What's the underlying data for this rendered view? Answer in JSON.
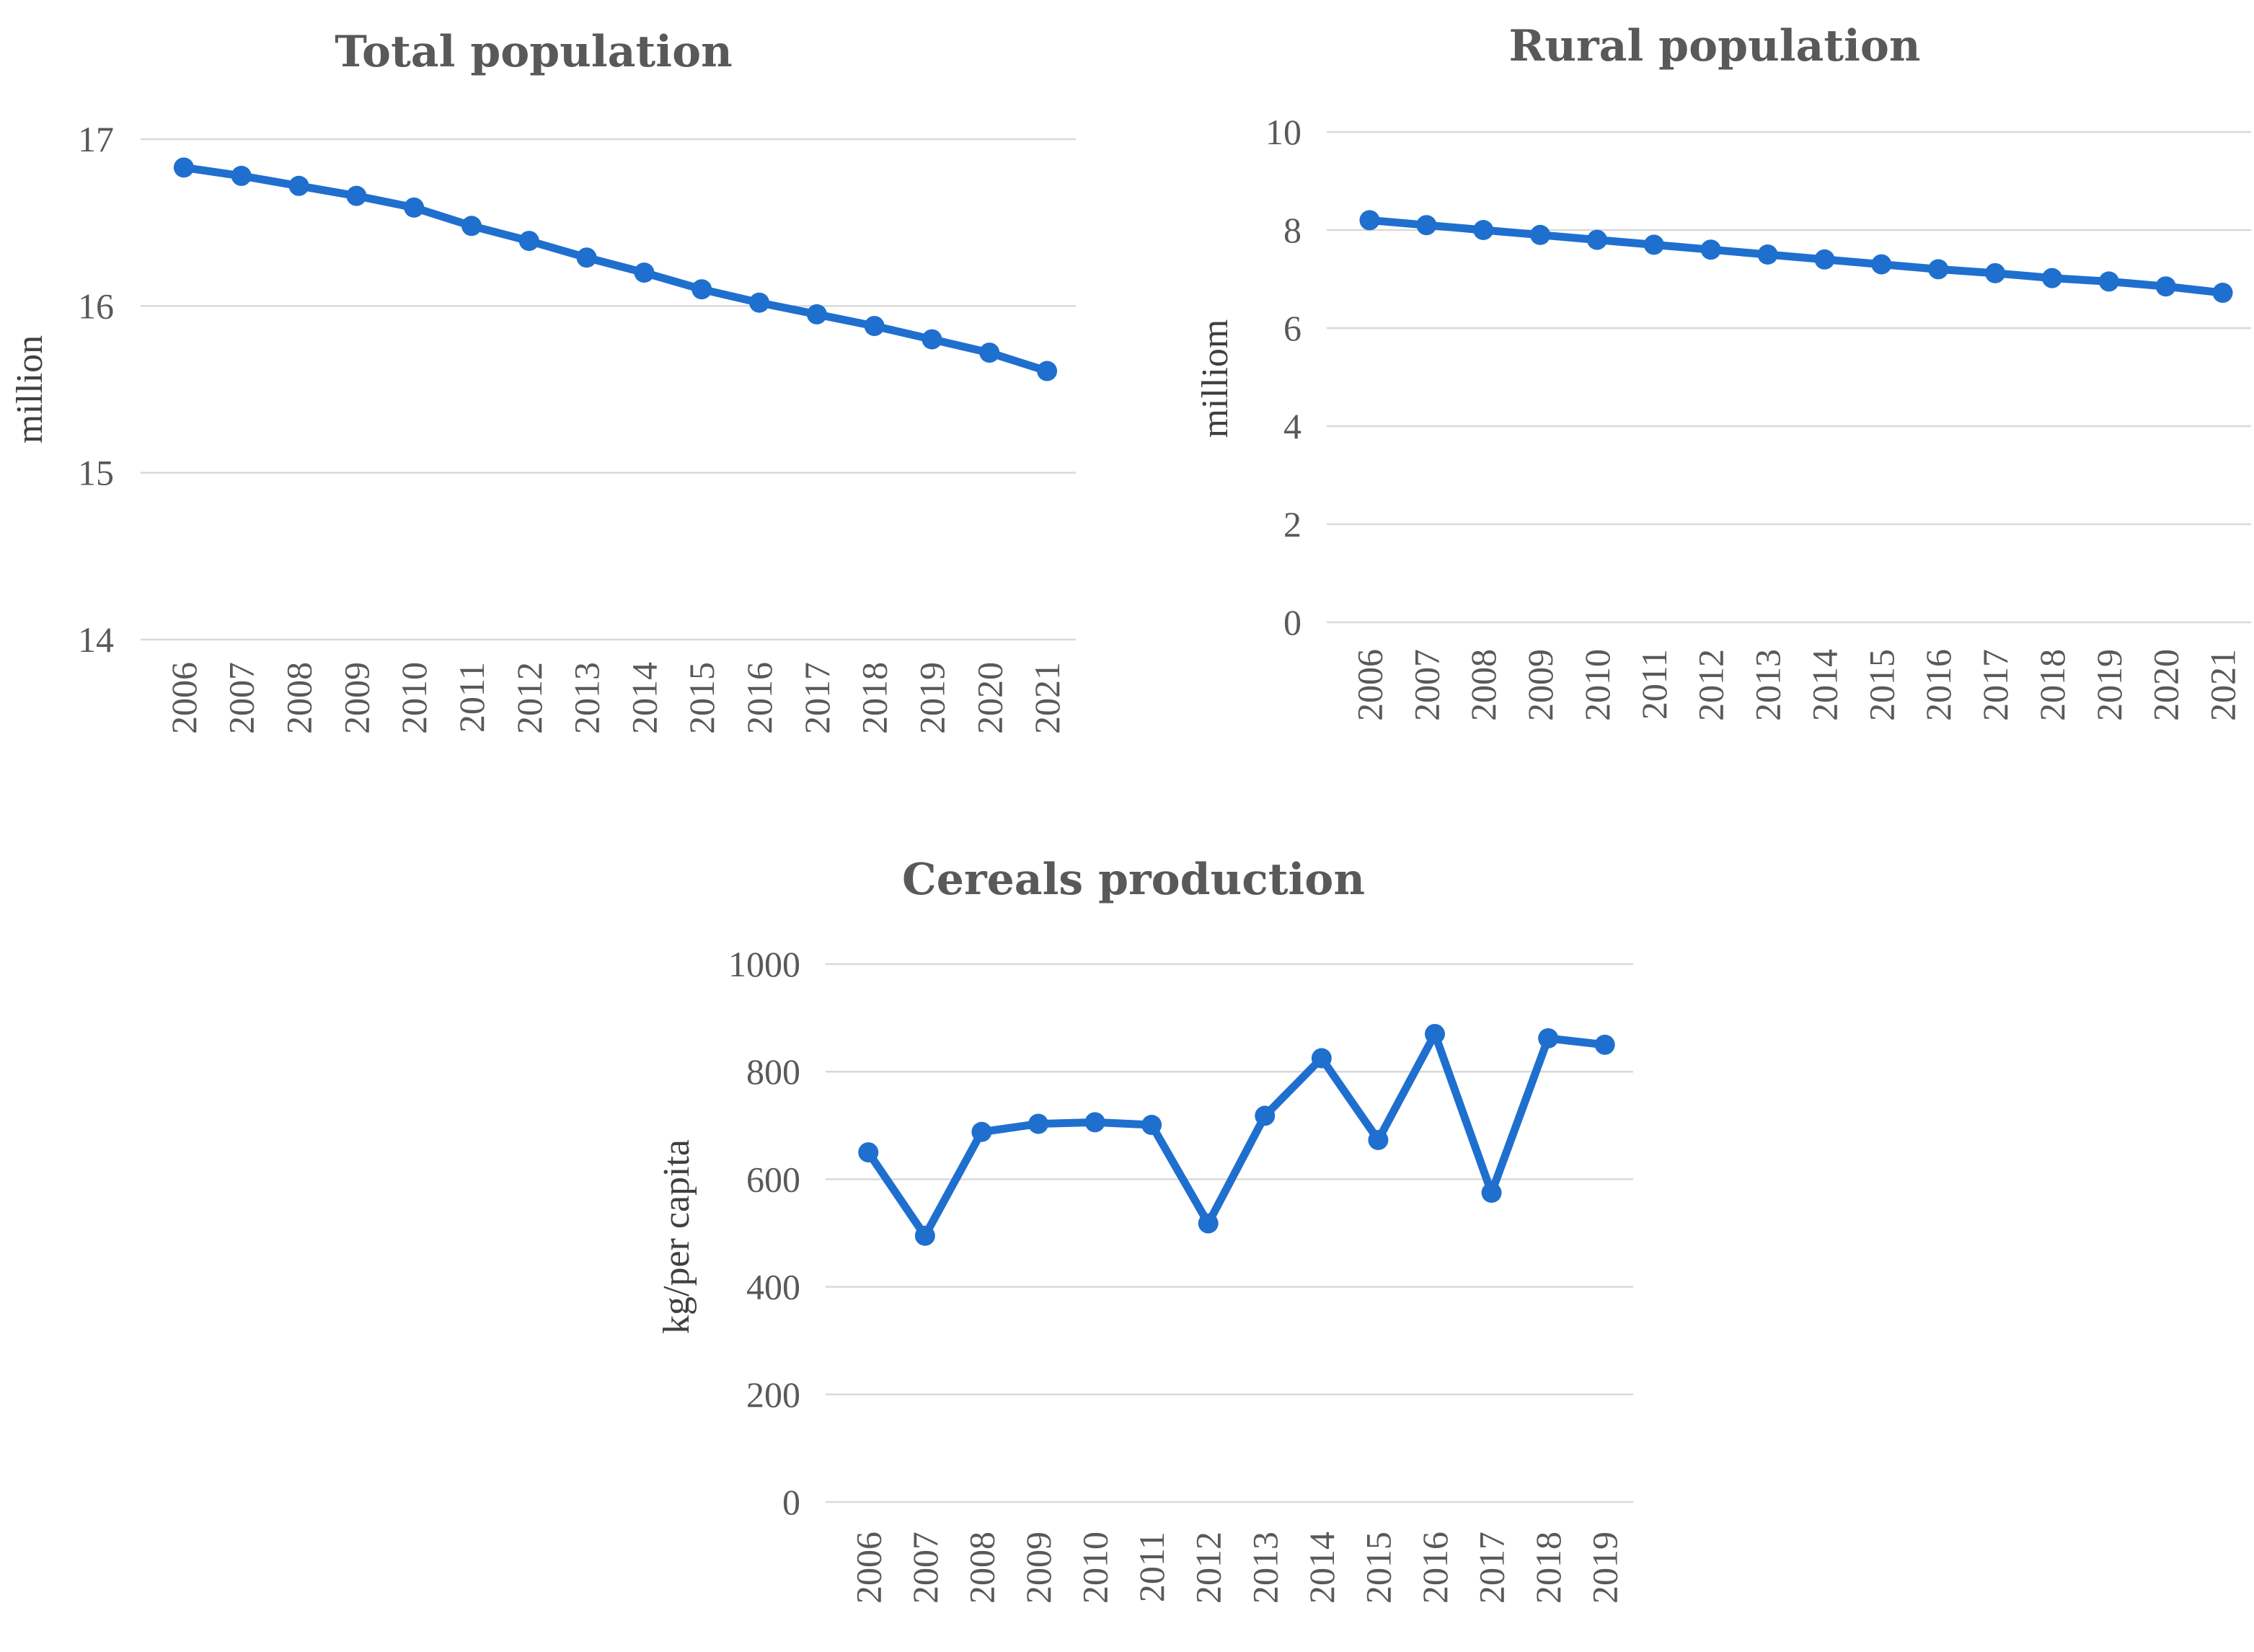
{
  "chart_data": [
    {
      "type": "line",
      "title": "Total population",
      "xlabel": "",
      "ylabel": "million",
      "ylim": [
        14,
        17
      ],
      "yticks": [
        "14",
        "15",
        "16",
        "17"
      ],
      "categories": [
        "2006",
        "2007",
        "2008",
        "2009",
        "2010",
        "2011",
        "2012",
        "2013",
        "2014",
        "2015",
        "2016",
        "2017",
        "2018",
        "2019",
        "2020",
        "2021"
      ],
      "series": [
        {
          "name": "Total population",
          "values": [
            16.83,
            16.78,
            16.72,
            16.66,
            16.59,
            16.48,
            16.39,
            16.29,
            16.2,
            16.1,
            16.02,
            15.95,
            15.88,
            15.8,
            15.72,
            15.61
          ]
        }
      ],
      "grid": true,
      "color": "#1f6fcf"
    },
    {
      "type": "line",
      "title": "Rural population",
      "xlabel": "",
      "ylabel": "milliom",
      "ylim": [
        0,
        10
      ],
      "yticks": [
        "0",
        "2",
        "4",
        "6",
        "8",
        "10"
      ],
      "categories": [
        "2006",
        "2007",
        "2008",
        "2009",
        "2010",
        "2011",
        "2012",
        "2013",
        "2014",
        "2015",
        "2016",
        "2017",
        "2018",
        "2019",
        "2020",
        "2021"
      ],
      "series": [
        {
          "name": "Rural population",
          "values": [
            8.2,
            8.1,
            8.0,
            7.9,
            7.8,
            7.7,
            7.6,
            7.5,
            7.4,
            7.3,
            7.2,
            7.12,
            7.02,
            6.95,
            6.85,
            6.72
          ]
        }
      ],
      "grid": true,
      "color": "#1f6fcf"
    },
    {
      "type": "line",
      "title": "Cereals production",
      "xlabel": "",
      "ylabel": "kg/per capita",
      "ylim": [
        0,
        1000
      ],
      "yticks": [
        "0",
        "200",
        "400",
        "600",
        "800",
        "1000"
      ],
      "categories": [
        "2006",
        "2007",
        "2008",
        "2009",
        "2010",
        "2011",
        "2012",
        "2013",
        "2014",
        "2015",
        "2016",
        "2017",
        "2018",
        "2019"
      ],
      "series": [
        {
          "name": "Cereals production",
          "values": [
            650,
            495,
            688,
            703,
            706,
            701,
            518,
            718,
            825,
            673,
            870,
            575,
            862,
            850
          ]
        }
      ],
      "grid": true,
      "color": "#1f6fcf"
    }
  ]
}
